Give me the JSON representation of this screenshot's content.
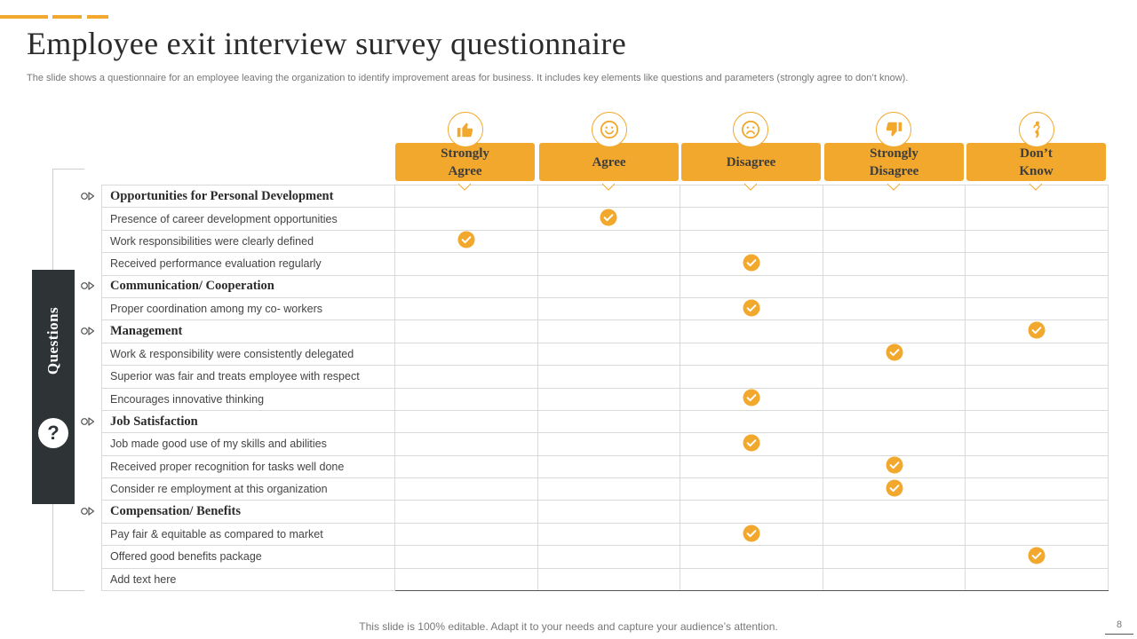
{
  "title": "Employee exit interview survey questionnaire",
  "subtitle": "The slide shows a questionnaire for an employee leaving the organization to identify improvement areas for business. It includes key elements like questions and parameters (strongly agree to don’t know).",
  "side_label": "Questions",
  "side_icon_text": "?",
  "accent_color": "#f2a82c",
  "columns": [
    {
      "line1": "Strongly",
      "line2": "Agree",
      "icon": "thumbs-up-icon"
    },
    {
      "line1": "Agree",
      "line2": "",
      "icon": "smiley-face-icon"
    },
    {
      "line1": "Disagree",
      "line2": "",
      "icon": "sad-face-icon"
    },
    {
      "line1": "Strongly",
      "line2": "Disagree",
      "icon": "thumbs-down-icon"
    },
    {
      "line1": "Don’t",
      "line2": "Know",
      "icon": "confused-person-icon"
    }
  ],
  "rows": [
    {
      "text": "Opportunities for Personal Development",
      "category": true,
      "answer": -1
    },
    {
      "text": "Presence of career development  opportunities",
      "category": false,
      "answer": 1
    },
    {
      "text": "Work responsibilities were clearly defined",
      "category": false,
      "answer": 0
    },
    {
      "text": "Received  performance  evaluation  regularly",
      "category": false,
      "answer": 2
    },
    {
      "text": "Communication/ Cooperation",
      "category": true,
      "answer": -1
    },
    {
      "text": "Proper coordination among my co- workers",
      "category": false,
      "answer": 2
    },
    {
      "text": "Management",
      "category": true,
      "answer": 4
    },
    {
      "text": "Work & responsibility were consistently delegated",
      "category": false,
      "answer": 3
    },
    {
      "text": "Superior was fair and treats employee with respect",
      "category": false,
      "answer": -1
    },
    {
      "text": "Encourages innovative  thinking",
      "category": false,
      "answer": 2
    },
    {
      "text": "Job Satisfaction",
      "category": true,
      "answer": -1
    },
    {
      "text": "Job made good use of my skills and abilities",
      "category": false,
      "answer": 2
    },
    {
      "text": "Received  proper recognition for tasks well done",
      "category": false,
      "answer": 3
    },
    {
      "text": "Consider re employment at this organization",
      "category": false,
      "answer": 3
    },
    {
      "text": "Compensation/ Benefits",
      "category": true,
      "answer": -1
    },
    {
      "text": "Pay fair  & equitable as compared  to market",
      "category": false,
      "answer": 2
    },
    {
      "text": "Offered  good benefits package",
      "category": false,
      "answer": 4
    },
    {
      "text": "Add text here",
      "category": false,
      "answer": -1
    }
  ],
  "footer": "This slide is 100% editable. Adapt it to your needs and capture your audience’s attention.",
  "page_number": "8"
}
